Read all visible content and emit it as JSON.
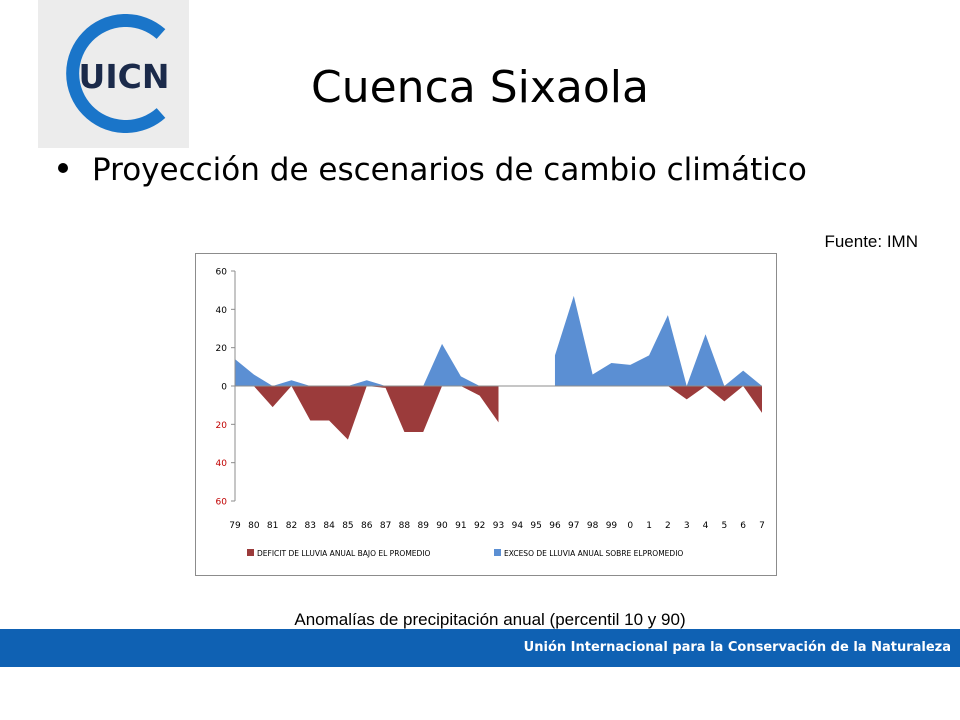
{
  "logo": {
    "text": "UICN",
    "ring_color": "#1a75c9",
    "text_color": "#1b2a4a"
  },
  "title": "Cuenca Sixaola",
  "bullet": "Proyección de escenarios de cambio climático",
  "source": "Fuente: IMN",
  "caption": "Anomalías de precipitación anual (percentil 10 y 90)",
  "footer": {
    "text": "Unión Internacional para la Conservación de la Naturaleza",
    "color": "#0f61b3"
  },
  "chart_data": {
    "type": "area",
    "categories": [
      "79",
      "80",
      "81",
      "82",
      "83",
      "84",
      "85",
      "86",
      "87",
      "88",
      "89",
      "90",
      "91",
      "92",
      "93",
      "94",
      "95",
      "96",
      "97",
      "98",
      "99",
      "0",
      "1",
      "2",
      "3",
      "4",
      "5",
      "6",
      "7"
    ],
    "series": [
      {
        "name": "DEFICIT DE LLUVIA ANUAL BAJO EL PROMEDIO",
        "color": "#9b3b3b",
        "values": [
          0,
          0,
          -11,
          0,
          -18,
          -18,
          -28,
          0,
          -1,
          -24,
          -24,
          0,
          0,
          -5,
          -19,
          0,
          0,
          0,
          0,
          0,
          0,
          0,
          0,
          0,
          -7,
          0,
          -8,
          0,
          -14
        ]
      },
      {
        "name": "EXCESO DE LLUVIA ANUAL SOBRE ELPROMEDIO",
        "color": "#5b8fd3",
        "values": [
          14,
          6,
          0,
          3,
          0,
          0,
          0,
          3,
          0,
          0,
          0,
          22,
          5,
          0,
          0,
          0,
          0,
          16,
          47,
          6,
          12,
          11,
          16,
          37,
          0,
          27,
          0,
          8,
          0
        ]
      }
    ],
    "gap_categories": [
      "94",
      "95"
    ],
    "ylim": [
      -60,
      60
    ],
    "yticks": [
      "60",
      "40",
      "20",
      "0",
      "20",
      "40",
      "60"
    ],
    "grid": false,
    "legend_position": "bottom"
  }
}
